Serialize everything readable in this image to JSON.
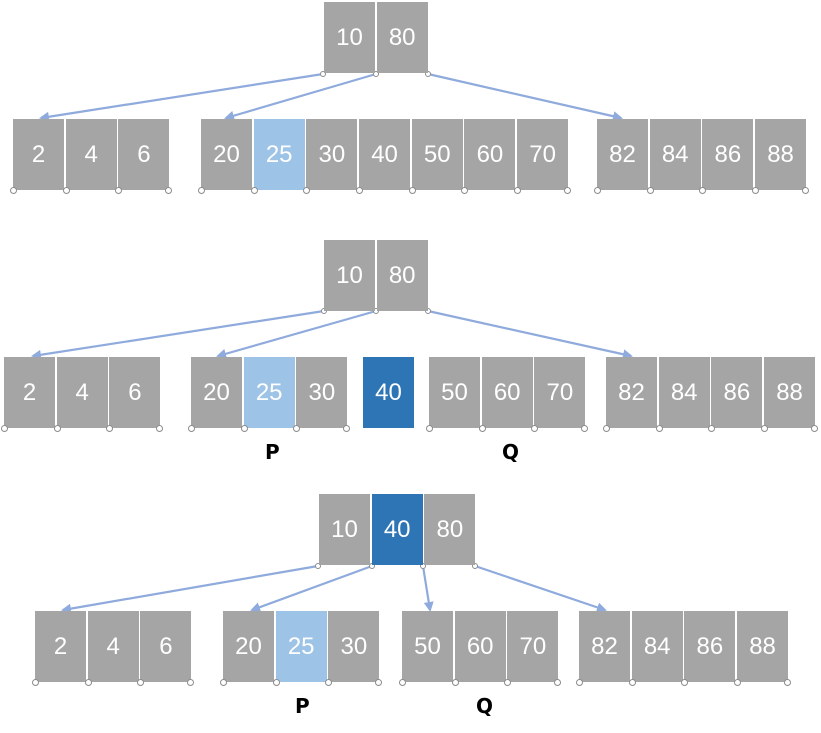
{
  "colors": {
    "cell": "#a5a5a5",
    "highlight_light": "#9dc3e6",
    "highlight_dark": "#2e75b6",
    "arrow": "#8faadc",
    "text": "#ffffff"
  },
  "diagrams": [
    {
      "nodes": [
        {
          "id": "root",
          "keys": [
            "10",
            "80"
          ],
          "highlight": {}
        },
        {
          "id": "left",
          "keys": [
            "2",
            "4",
            "6"
          ],
          "highlight": {}
        },
        {
          "id": "mid",
          "keys": [
            "20",
            "25",
            "30",
            "40",
            "50",
            "60",
            "70"
          ],
          "highlight": {
            "25": "light"
          }
        },
        {
          "id": "right",
          "keys": [
            "82",
            "84",
            "86",
            "88"
          ],
          "highlight": {}
        }
      ]
    },
    {
      "nodes": [
        {
          "id": "root",
          "keys": [
            "10",
            "80"
          ],
          "highlight": {}
        },
        {
          "id": "left",
          "keys": [
            "2",
            "4",
            "6"
          ],
          "highlight": {}
        },
        {
          "id": "p",
          "keys": [
            "20",
            "25",
            "30"
          ],
          "highlight": {
            "25": "light"
          }
        },
        {
          "id": "sep",
          "keys": [
            "40"
          ],
          "highlight": {
            "40": "dark"
          }
        },
        {
          "id": "q",
          "keys": [
            "50",
            "60",
            "70"
          ],
          "highlight": {}
        },
        {
          "id": "right",
          "keys": [
            "82",
            "84",
            "86",
            "88"
          ],
          "highlight": {}
        }
      ],
      "labels": {
        "p": "P",
        "q": "Q"
      }
    },
    {
      "nodes": [
        {
          "id": "root",
          "keys": [
            "10",
            "40",
            "80"
          ],
          "highlight": {
            "40": "dark"
          }
        },
        {
          "id": "left",
          "keys": [
            "2",
            "4",
            "6"
          ],
          "highlight": {}
        },
        {
          "id": "p",
          "keys": [
            "20",
            "25",
            "30"
          ],
          "highlight": {
            "25": "light"
          }
        },
        {
          "id": "q",
          "keys": [
            "50",
            "60",
            "70"
          ],
          "highlight": {}
        },
        {
          "id": "right",
          "keys": [
            "82",
            "84",
            "86",
            "88"
          ],
          "highlight": {}
        }
      ],
      "labels": {
        "p": "P",
        "q": "Q"
      }
    }
  ]
}
